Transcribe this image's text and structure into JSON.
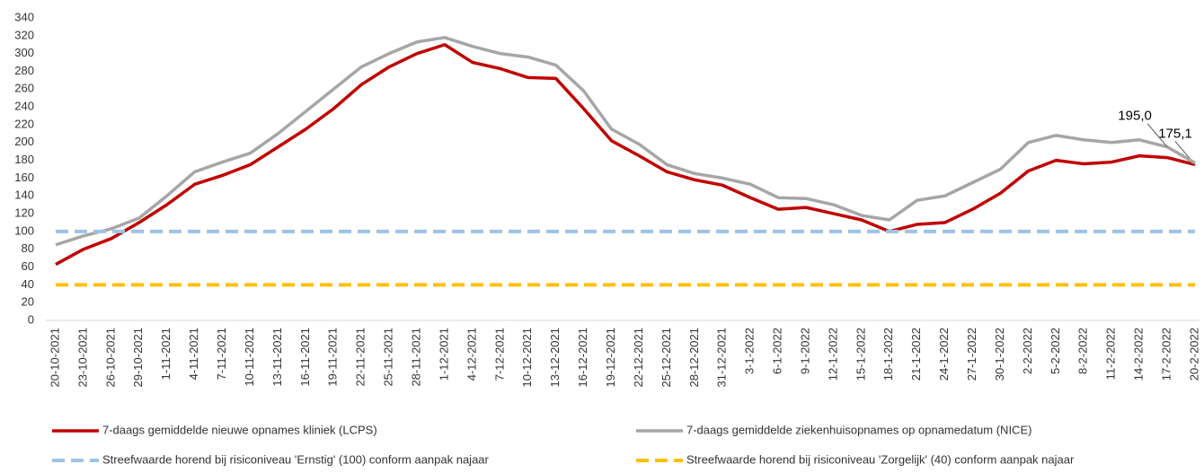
{
  "chart_data": {
    "type": "line",
    "categories": [
      "20-10-2021",
      "23-10-2021",
      "26-10-2021",
      "29-10-2021",
      "1-11-2021",
      "4-11-2021",
      "7-11-2021",
      "10-11-2021",
      "13-11-2021",
      "16-11-2021",
      "19-11-2021",
      "22-11-2021",
      "25-11-2021",
      "28-11-2021",
      "1-12-2021",
      "4-12-2021",
      "7-12-2021",
      "10-12-2021",
      "13-12-2021",
      "16-12-2021",
      "19-12-2021",
      "22-12-2021",
      "25-12-2021",
      "28-12-2021",
      "31-12-2021",
      "3-1-2022",
      "6-1-2022",
      "9-1-2022",
      "12-1-2022",
      "15-1-2022",
      "18-1-2022",
      "21-1-2022",
      "24-1-2022",
      "27-1-2022",
      "30-1-2022",
      "2-2-2022",
      "5-2-2022",
      "8-2-2022",
      "11-2-2022",
      "14-2-2022",
      "17-2-2022",
      "20-2-2022"
    ],
    "series": [
      {
        "name": "7-daags gemiddelde nieuwe opnames kliniek (LCPS)",
        "color": "#c00000",
        "dashed": false,
        "values": [
          63,
          80,
          92,
          110,
          130,
          153,
          163,
          175,
          195,
          215,
          238,
          265,
          285,
          300,
          310,
          290,
          283,
          273,
          272,
          238,
          202,
          185,
          167,
          158,
          152,
          138,
          125,
          127,
          120,
          113,
          100,
          108,
          110,
          125,
          143,
          168,
          180,
          176,
          178,
          185,
          183,
          175.1
        ],
        "value_labels": [
          null,
          null,
          null,
          null,
          null,
          null,
          null,
          null,
          null,
          null,
          null,
          null,
          null,
          null,
          null,
          null,
          null,
          null,
          null,
          null,
          null,
          null,
          null,
          null,
          null,
          null,
          null,
          null,
          null,
          null,
          null,
          null,
          null,
          null,
          null,
          null,
          null,
          null,
          null,
          null,
          null,
          "175,1"
        ]
      },
      {
        "name": "7-daags gemiddelde ziekenhuisopnames op opnamedatum (NICE)",
        "color": "#a6a6a6",
        "dashed": false,
        "values": [
          85,
          95,
          103,
          115,
          140,
          167,
          178,
          188,
          210,
          235,
          260,
          285,
          300,
          313,
          318,
          308,
          300,
          296,
          287,
          258,
          215,
          198,
          175,
          165,
          160,
          153,
          138,
          137,
          130,
          118,
          113,
          135,
          140,
          155,
          170,
          200,
          208,
          203,
          200,
          203,
          195,
          177
        ],
        "value_labels": [
          null,
          null,
          null,
          null,
          null,
          null,
          null,
          null,
          null,
          null,
          null,
          null,
          null,
          null,
          null,
          null,
          null,
          null,
          null,
          null,
          null,
          null,
          null,
          null,
          null,
          null,
          null,
          null,
          null,
          null,
          null,
          null,
          null,
          null,
          null,
          null,
          null,
          null,
          null,
          null,
          "195,0",
          null
        ]
      },
      {
        "name": "Streefwaarde horend bij risiconiveau 'Ernstig' (100) conform aanpak najaar",
        "color": "#9dc3e6",
        "dashed": true,
        "values": [
          100,
          100,
          100,
          100,
          100,
          100,
          100,
          100,
          100,
          100,
          100,
          100,
          100,
          100,
          100,
          100,
          100,
          100,
          100,
          100,
          100,
          100,
          100,
          100,
          100,
          100,
          100,
          100,
          100,
          100,
          100,
          100,
          100,
          100,
          100,
          100,
          100,
          100,
          100,
          100,
          100,
          100
        ]
      },
      {
        "name": "Streefwaarde horend bij risiconiveau 'Zorgelijk' (40) conform aanpak najaar",
        "color": "#ffc000",
        "dashed": true,
        "values": [
          40,
          40,
          40,
          40,
          40,
          40,
          40,
          40,
          40,
          40,
          40,
          40,
          40,
          40,
          40,
          40,
          40,
          40,
          40,
          40,
          40,
          40,
          40,
          40,
          40,
          40,
          40,
          40,
          40,
          40,
          40,
          40,
          40,
          40,
          40,
          40,
          40,
          40,
          40,
          40,
          40,
          40
        ]
      }
    ],
    "ylim": [
      0,
      340
    ],
    "yticks": [
      0,
      20,
      40,
      60,
      80,
      100,
      120,
      140,
      160,
      180,
      200,
      220,
      240,
      260,
      280,
      300,
      320,
      340
    ],
    "grid": false
  }
}
